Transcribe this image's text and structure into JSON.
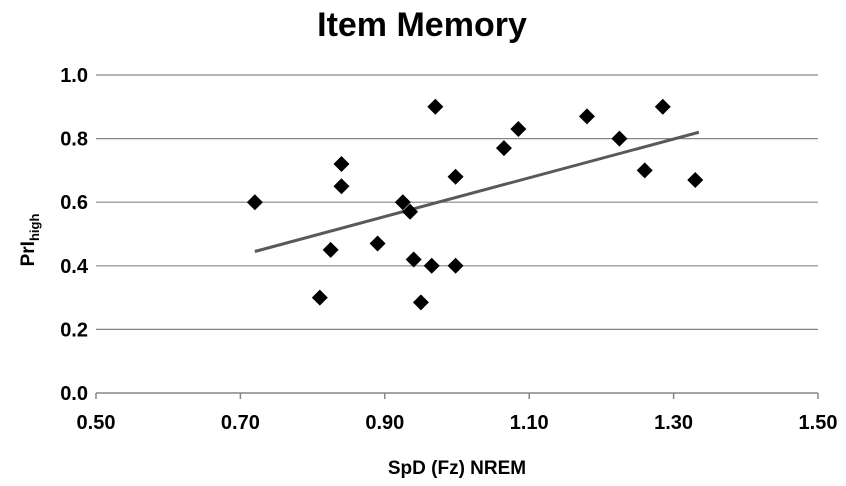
{
  "chart_data": {
    "type": "scatter",
    "title": "Item Memory",
    "xlabel": "SpD (Fz) NREM",
    "ylabel_main": "PrI",
    "ylabel_sub": "high",
    "xlim": [
      0.5,
      1.5
    ],
    "ylim": [
      0.0,
      1.0
    ],
    "x_ticks": [
      "0.50",
      "0.70",
      "0.90",
      "1.10",
      "1.30",
      "1.50"
    ],
    "y_ticks": [
      "0.0",
      "0.2",
      "0.4",
      "0.6",
      "0.8",
      "1.0"
    ],
    "grid": "horizontal",
    "marker": "diamond",
    "marker_color": "#000000",
    "trendline_color": "#595959",
    "points": [
      {
        "x": 0.72,
        "y": 0.6
      },
      {
        "x": 0.81,
        "y": 0.3
      },
      {
        "x": 0.825,
        "y": 0.45
      },
      {
        "x": 0.84,
        "y": 0.72
      },
      {
        "x": 0.84,
        "y": 0.65
      },
      {
        "x": 0.89,
        "y": 0.47
      },
      {
        "x": 0.925,
        "y": 0.6
      },
      {
        "x": 0.935,
        "y": 0.57
      },
      {
        "x": 0.94,
        "y": 0.42
      },
      {
        "x": 0.95,
        "y": 0.285
      },
      {
        "x": 0.965,
        "y": 0.4
      },
      {
        "x": 0.97,
        "y": 0.9
      },
      {
        "x": 0.998,
        "y": 0.68
      },
      {
        "x": 0.998,
        "y": 0.4
      },
      {
        "x": 1.065,
        "y": 0.77
      },
      {
        "x": 1.085,
        "y": 0.83
      },
      {
        "x": 1.18,
        "y": 0.87
      },
      {
        "x": 1.225,
        "y": 0.8
      },
      {
        "x": 1.26,
        "y": 0.7
      },
      {
        "x": 1.285,
        "y": 0.9
      },
      {
        "x": 1.33,
        "y": 0.67
      }
    ],
    "trendline": [
      {
        "x": 0.72,
        "y": 0.445
      },
      {
        "x": 1.335,
        "y": 0.82
      }
    ]
  }
}
